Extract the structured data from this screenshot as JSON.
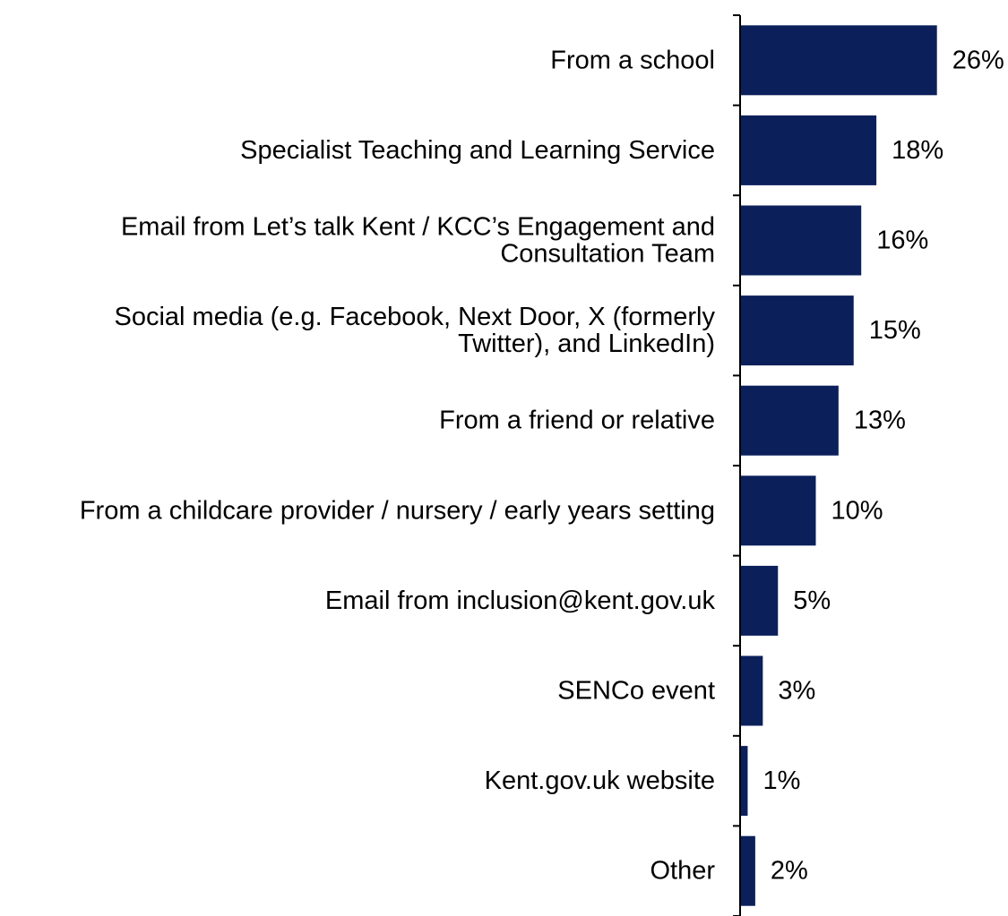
{
  "chart_data": {
    "type": "bar",
    "orientation": "horizontal",
    "categories": [
      [
        "From a school"
      ],
      [
        "Specialist Teaching and Learning Service"
      ],
      [
        "Email from Let’s talk Kent / KCC’s Engagement and",
        "Consultation Team"
      ],
      [
        "Social media (e.g. Facebook, Next Door, X (formerly",
        "Twitter), and LinkedIn)"
      ],
      [
        "From a friend or relative"
      ],
      [
        "From a childcare provider / nursery / early years setting"
      ],
      [
        "Email from inclusion@kent.gov.uk"
      ],
      [
        "SENCo event"
      ],
      [
        "Kent.gov.uk website"
      ],
      [
        "Other"
      ]
    ],
    "values": [
      26,
      18,
      16,
      15,
      13,
      10,
      5,
      3,
      1,
      2
    ],
    "value_labels": [
      "26%",
      "18%",
      "16%",
      "15%",
      "13%",
      "10%",
      "5%",
      "3%",
      "1%",
      "2%"
    ],
    "value_unit": "%",
    "xlim": [
      0,
      30
    ],
    "grid": false,
    "legend": "none",
    "title": "",
    "xlabel": "",
    "ylabel": ""
  },
  "colors": {
    "bar": "#0b1f5b",
    "axis": "#000000",
    "text": "#000000"
  }
}
